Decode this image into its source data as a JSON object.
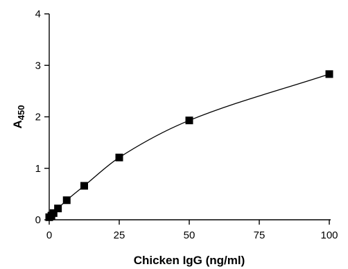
{
  "chart_data": {
    "type": "scatter",
    "xlabel": "Chicken IgG (ng/ml)",
    "ylabel": {
      "main": "A",
      "subscript": "450"
    },
    "xlim": [
      0,
      100
    ],
    "ylim": [
      0,
      4
    ],
    "xticks": [
      0,
      25,
      50,
      75,
      100
    ],
    "yticks": [
      0,
      1,
      2,
      3,
      4
    ],
    "grid": false,
    "marker": "square",
    "fit_line": true,
    "series": [
      {
        "x": [
          0,
          0.78,
          1.56,
          3.13,
          6.25,
          12.5,
          25,
          50,
          100
        ],
        "y": [
          0.05,
          0.08,
          0.13,
          0.22,
          0.38,
          0.66,
          1.21,
          1.93,
          2.83
        ]
      }
    ],
    "colors": {
      "marker": "#000000",
      "line": "#000000",
      "axis": "#000000"
    }
  }
}
